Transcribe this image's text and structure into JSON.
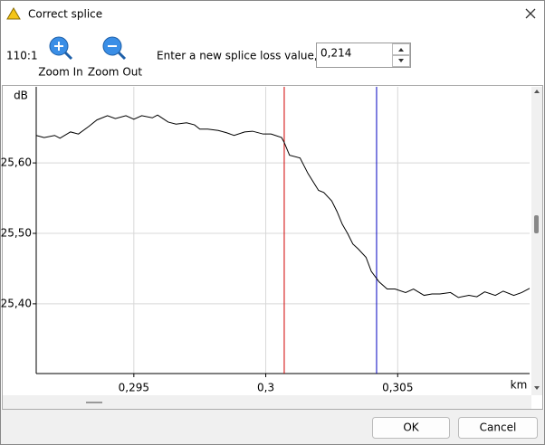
{
  "dialog": {
    "title": "Correct splice",
    "scale": "110:1",
    "zoom_in": "Zoom In",
    "zoom_out": "Zoom Out",
    "splice_loss_label": "Enter a new splice loss value, dB:",
    "splice_loss_value": "0,214",
    "ok": "OK",
    "cancel": "Cancel"
  },
  "chart_data": {
    "type": "line",
    "y_label": "dB",
    "x_label": "km",
    "x": [
      0.2913,
      0.2916,
      0.292,
      0.2922,
      0.2926,
      0.2929,
      0.2933,
      0.2936,
      0.294,
      0.2943,
      0.2947,
      0.295,
      0.2953,
      0.2957,
      0.2959,
      0.2963,
      0.2966,
      0.297,
      0.2973,
      0.2975,
      0.2978,
      0.2982,
      0.2985,
      0.2988,
      0.2992,
      0.2995,
      0.2999,
      0.3002,
      0.3006,
      0.3007,
      0.3009,
      0.3013,
      0.3016,
      0.302,
      0.3022,
      0.3025,
      0.3027,
      0.3029,
      0.3031,
      0.3033,
      0.3035,
      0.3038,
      0.304,
      0.3043,
      0.3046,
      0.3049,
      0.3053,
      0.3056,
      0.306,
      0.3063,
      0.3066,
      0.307,
      0.3073,
      0.3077,
      0.308,
      0.3083,
      0.3087,
      0.309,
      0.3094,
      0.3097,
      0.31
    ],
    "series": [
      {
        "color": "#000000",
        "values": [
          25.639,
          25.636,
          25.639,
          25.635,
          25.644,
          25.641,
          25.652,
          25.661,
          25.667,
          25.663,
          25.667,
          25.662,
          25.667,
          25.664,
          25.668,
          25.658,
          25.655,
          25.657,
          25.654,
          25.648,
          25.648,
          25.646,
          25.643,
          25.639,
          25.644,
          25.645,
          25.641,
          25.641,
          25.636,
          25.629,
          25.611,
          25.607,
          25.585,
          25.561,
          25.558,
          25.546,
          25.531,
          25.513,
          25.5,
          25.485,
          25.478,
          25.466,
          25.446,
          25.431,
          25.421,
          25.421,
          25.416,
          25.421,
          25.412,
          25.414,
          25.414,
          25.416,
          25.409,
          25.412,
          25.41,
          25.417,
          25.412,
          25.418,
          25.412,
          25.416,
          25.422
        ]
      }
    ],
    "xlim": [
      0.2913,
      0.31
    ],
    "ylim": [
      25.301,
      25.708
    ],
    "xticks": [
      {
        "value": 0.295,
        "label": "0,295"
      },
      {
        "value": 0.3,
        "label": "0,3"
      },
      {
        "value": 0.305,
        "label": "0,305"
      }
    ],
    "yticks": [
      {
        "value": 25.4,
        "label": "25,40"
      },
      {
        "value": 25.5,
        "label": "25,50"
      },
      {
        "value": 25.6,
        "label": "25,60"
      }
    ],
    "grid": true,
    "markers": [
      {
        "x": 0.3007,
        "color": "#d00000"
      },
      {
        "x": 0.3042,
        "color": "#0000c0"
      }
    ]
  }
}
